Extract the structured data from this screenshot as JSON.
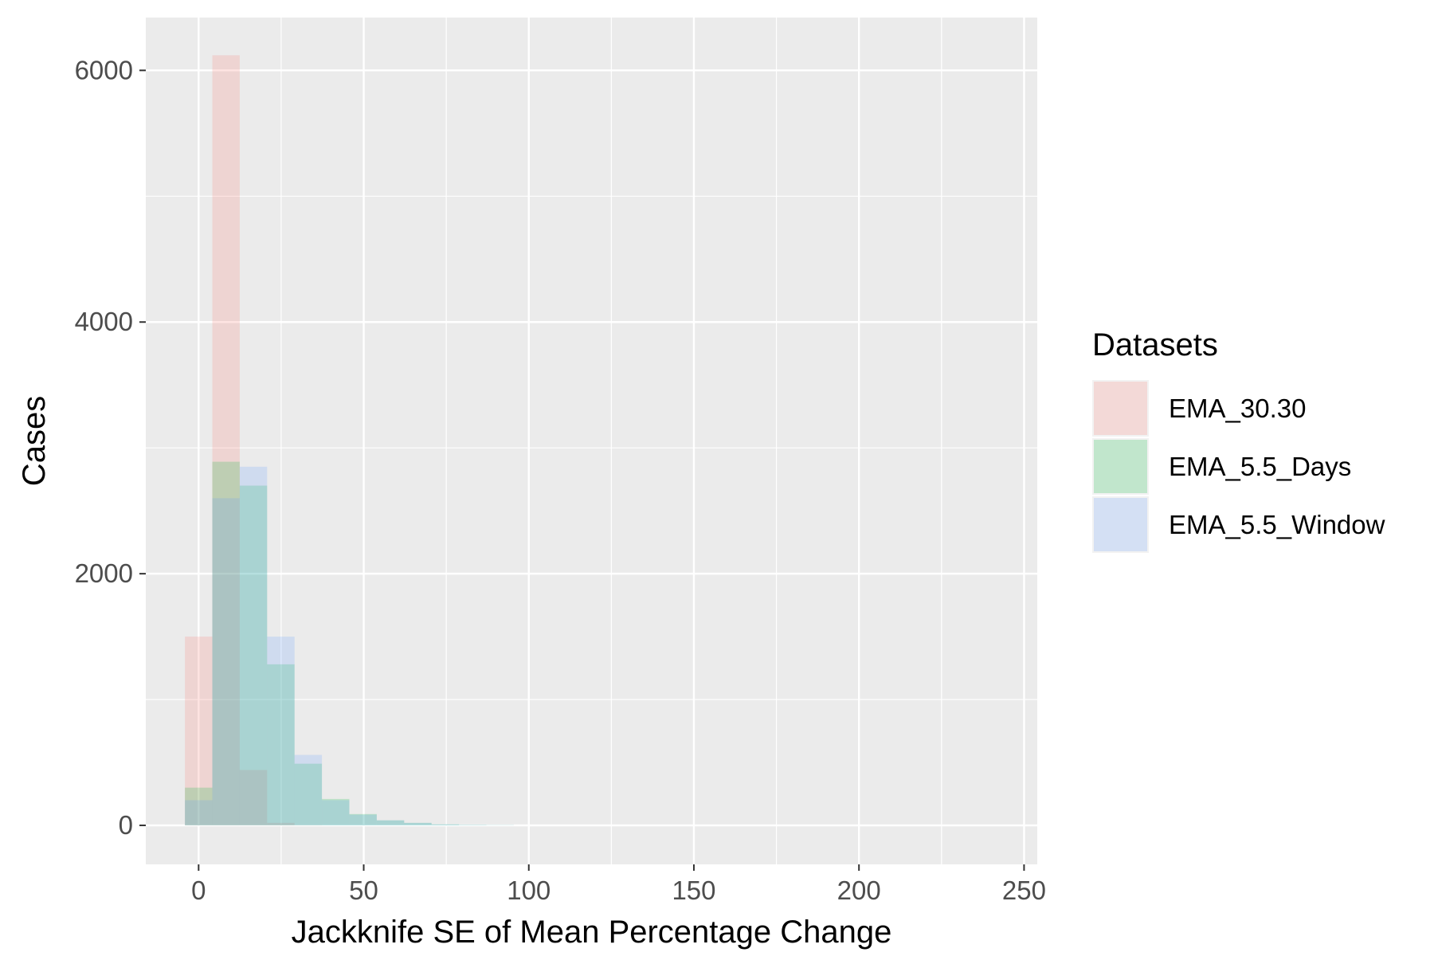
{
  "chart_data": {
    "type": "histogram",
    "xlabel": "Jackknife SE of Mean Percentage Change",
    "ylabel": "Cases",
    "xlim": [
      -16,
      254
    ],
    "ylim": [
      -310,
      6420
    ],
    "x_ticks": [
      0,
      50,
      100,
      150,
      200,
      250
    ],
    "x_tick_labels": [
      "0",
      "50",
      "100",
      "150",
      "200",
      "250"
    ],
    "y_ticks": [
      0,
      2000,
      4000,
      6000
    ],
    "y_tick_labels": [
      "0",
      "2000",
      "4000",
      "6000"
    ],
    "grid": true,
    "legend": {
      "title": "Datasets",
      "position": "right"
    },
    "bin_width": 8.3,
    "bin_edges": [
      -4.15,
      4.15,
      12.45,
      20.75,
      29.05,
      37.35,
      45.65,
      53.95,
      62.25,
      70.55,
      78.85,
      87.15,
      95.45
    ],
    "series": [
      {
        "name": "EMA_30.30",
        "color": "#F8766D",
        "values": [
          1500,
          6120,
          440,
          20,
          2,
          0,
          0,
          0,
          0,
          0,
          0,
          0
        ]
      },
      {
        "name": "EMA_5.5_Days",
        "color": "#00BA38",
        "values": [
          300,
          2890,
          2700,
          1280,
          490,
          210,
          90,
          40,
          20,
          8,
          4,
          2
        ]
      },
      {
        "name": "EMA_5.5_Window",
        "color": "#619CFF",
        "values": [
          200,
          2600,
          2850,
          1500,
          560,
          200,
          85,
          40,
          20,
          8,
          4,
          2
        ]
      }
    ]
  }
}
